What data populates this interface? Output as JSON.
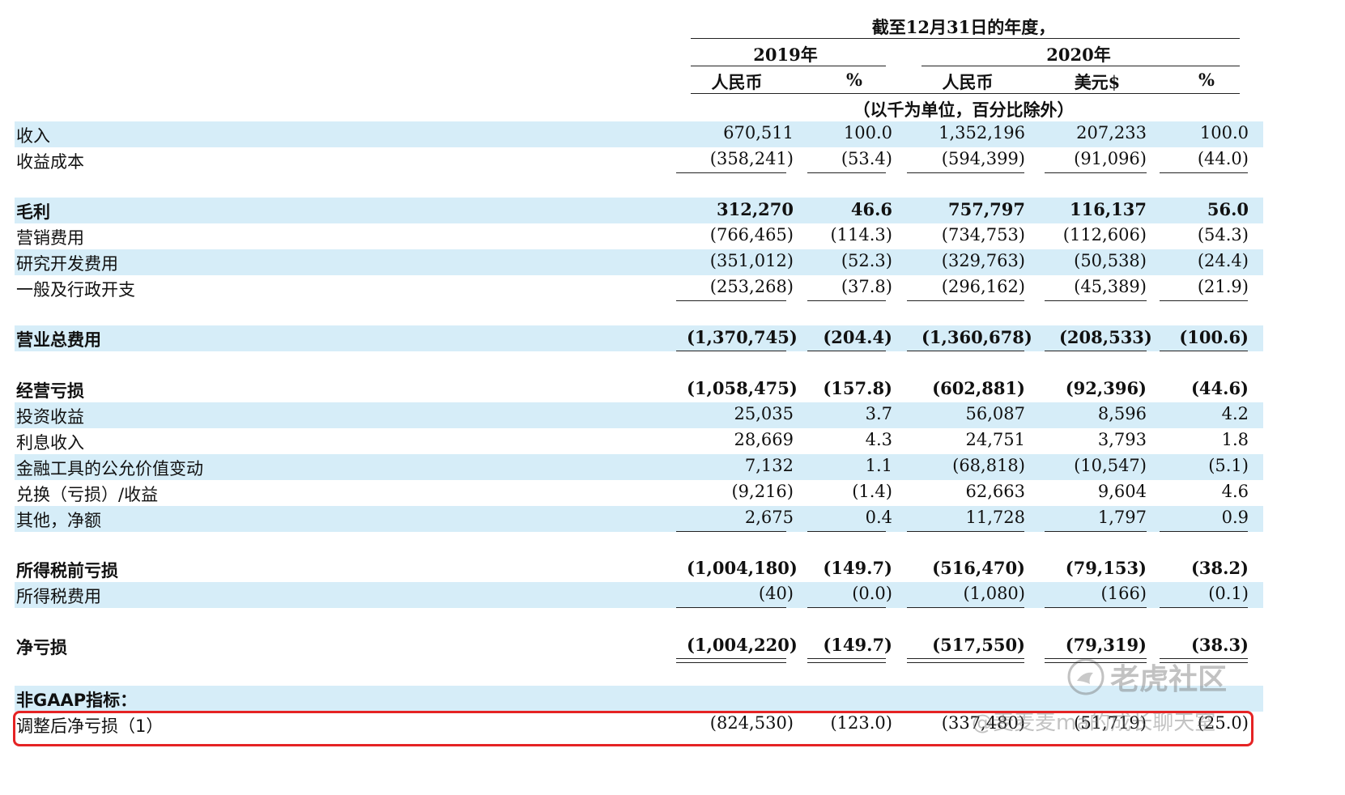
{
  "header": {
    "period_title": "截至12月31日的年度，",
    "year_2019": "2019年",
    "year_2020": "2020年",
    "col_rmb_2019": "人民币",
    "col_pct_2019": "%",
    "col_rmb_2020": "人民币",
    "col_usd_2020": "美元$",
    "col_pct_2020": "%",
    "units_note": "（以千为单位，百分比除外）"
  },
  "rows": [
    {
      "label": "收入",
      "v": [
        "670,511",
        "100.0",
        "1,352,196",
        "207,233",
        "100.0"
      ]
    },
    {
      "label": "收益成本",
      "v": [
        "(358,241)",
        "(53.4)",
        "(594,399)",
        "(91,096)",
        "(44.0)"
      ]
    },
    {
      "label": "毛利",
      "v": [
        "312,270",
        "46.6",
        "757,797",
        "116,137",
        "56.0"
      ]
    },
    {
      "label": "营销费用",
      "v": [
        "(766,465)",
        "(114.3)",
        "(734,753)",
        "(112,606)",
        "(54.3)"
      ]
    },
    {
      "label": "研究开发费用",
      "v": [
        "(351,012)",
        "(52.3)",
        "(329,763)",
        "(50,538)",
        "(24.4)"
      ]
    },
    {
      "label": "一般及行政开支",
      "v": [
        "(253,268)",
        "(37.8)",
        "(296,162)",
        "(45,389)",
        "(21.9)"
      ]
    },
    {
      "label": "营业总费用",
      "v": [
        "(1,370,745)",
        "(204.4)",
        "(1,360,678)",
        "(208,533)",
        "(100.6)"
      ]
    },
    {
      "label": "经营亏损",
      "v": [
        "(1,058,475)",
        "(157.8)",
        "(602,881)",
        "(92,396)",
        "(44.6)"
      ]
    },
    {
      "label": "投资收益",
      "v": [
        "25,035",
        "3.7",
        "56,087",
        "8,596",
        "4.2"
      ]
    },
    {
      "label": "利息收入",
      "v": [
        "28,669",
        "4.3",
        "24,751",
        "3,793",
        "1.8"
      ]
    },
    {
      "label": "金融工具的公允价值变动",
      "v": [
        "7,132",
        "1.1",
        "(68,818)",
        "(10,547)",
        "(5.1)"
      ]
    },
    {
      "label": "兑换（亏损）/收益",
      "v": [
        "(9,216)",
        "(1.4)",
        "62,663",
        "9,604",
        "4.6"
      ]
    },
    {
      "label": "其他，净额",
      "v": [
        "2,675",
        "0.4",
        "11,728",
        "1,797",
        "0.9"
      ]
    },
    {
      "label": "所得税前亏损",
      "v": [
        "(1,004,180)",
        "(149.7)",
        "(516,470)",
        "(79,153)",
        "(38.2)"
      ]
    },
    {
      "label": "所得税费用",
      "v": [
        "(40)",
        "(0.0)",
        "(1,080)",
        "(166)",
        "(0.1)"
      ]
    },
    {
      "label": "净亏损",
      "v": [
        "(1,004,220)",
        "(149.7)",
        "(517,550)",
        "(79,319)",
        "(38.3)"
      ]
    },
    {
      "label": "非GAAP指标：",
      "v": [
        "",
        "",
        "",
        "",
        ""
      ]
    },
    {
      "label": "调整后净亏损（1）",
      "v": [
        "(824,530)",
        "(123.0)",
        "(337,480)",
        "(51,719)",
        "(25.0)"
      ]
    }
  ],
  "watermark": {
    "brand": "老虎社区",
    "author": "@麦麦麦ma的成长聊天室"
  },
  "highlight_color": "#e52324",
  "row_shade_color": "#d6edf8"
}
